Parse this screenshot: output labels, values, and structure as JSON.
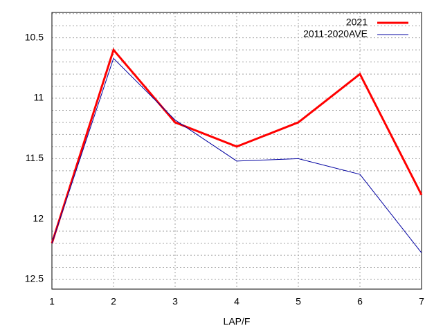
{
  "chart_data": {
    "type": "line",
    "x_label": "LAP/F",
    "x": [
      1,
      2,
      3,
      4,
      5,
      6,
      7
    ],
    "series": [
      {
        "name": "2021",
        "color": "#ff0000",
        "width": 3,
        "values": [
          12.2,
          10.6,
          11.2,
          11.4,
          11.2,
          10.8,
          11.8
        ]
      },
      {
        "name": "2011-2020AVE",
        "color": "#0000a0",
        "width": 1,
        "values": [
          12.2,
          10.67,
          11.18,
          11.52,
          11.5,
          11.63,
          12.28
        ]
      }
    ],
    "xlim": [
      1,
      7
    ],
    "xticks": [
      1,
      2,
      3,
      4,
      5,
      6,
      7
    ],
    "ylim": [
      10.29,
      12.58
    ],
    "y_reversed": true,
    "yticks": [
      10.5,
      11,
      11.5,
      12,
      12.5
    ],
    "yminorticks": [
      10.3,
      10.4,
      10.6,
      10.7,
      10.8,
      10.9,
      11.1,
      11.2,
      11.3,
      11.4,
      11.6,
      11.7,
      11.8,
      11.9,
      12.1,
      12.2,
      12.3,
      12.4
    ],
    "grid": true,
    "legend": "top-right"
  }
}
